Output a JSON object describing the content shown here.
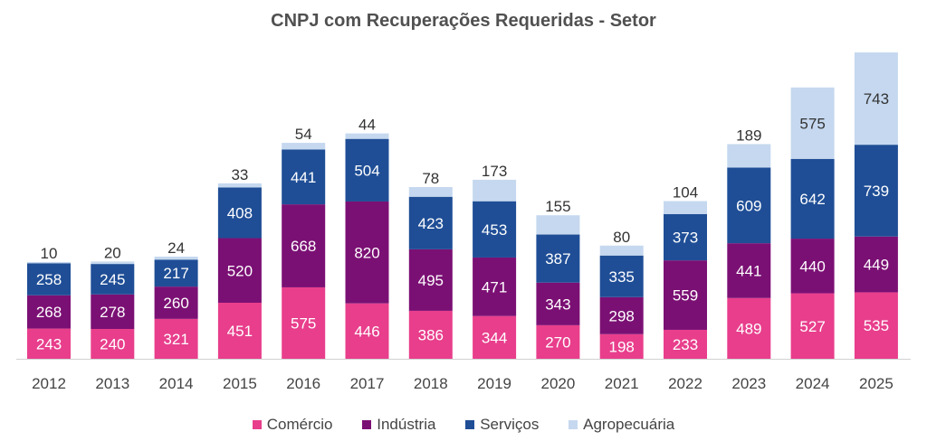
{
  "chart_data": {
    "type": "bar",
    "stacked": true,
    "title": "CNPJ com Recuperações Requeridas - Setor",
    "categories": [
      "2012",
      "2013",
      "2014",
      "2015",
      "2016",
      "2017",
      "2018",
      "2019",
      "2020",
      "2021",
      "2022",
      "2023",
      "2024",
      "2025"
    ],
    "series": [
      {
        "name": "Comércio",
        "color": "#e83e8c",
        "values": [
          243,
          240,
          321,
          451,
          575,
          446,
          386,
          344,
          270,
          198,
          233,
          489,
          527,
          535
        ]
      },
      {
        "name": "Indústria",
        "color": "#7b1074",
        "values": [
          268,
          278,
          260,
          520,
          668,
          820,
          495,
          471,
          343,
          298,
          559,
          441,
          440,
          449
        ]
      },
      {
        "name": "Serviços",
        "color": "#1f4e96",
        "values": [
          258,
          245,
          217,
          408,
          441,
          504,
          423,
          453,
          387,
          335,
          373,
          609,
          642,
          739
        ]
      },
      {
        "name": "Agropecuária",
        "color": "#c5d8ef",
        "values": [
          10,
          20,
          24,
          33,
          54,
          44,
          78,
          173,
          155,
          80,
          104,
          189,
          575,
          743
        ]
      }
    ],
    "ylim": [
      0,
      2466
    ],
    "grid": false,
    "legend": "bottom"
  }
}
